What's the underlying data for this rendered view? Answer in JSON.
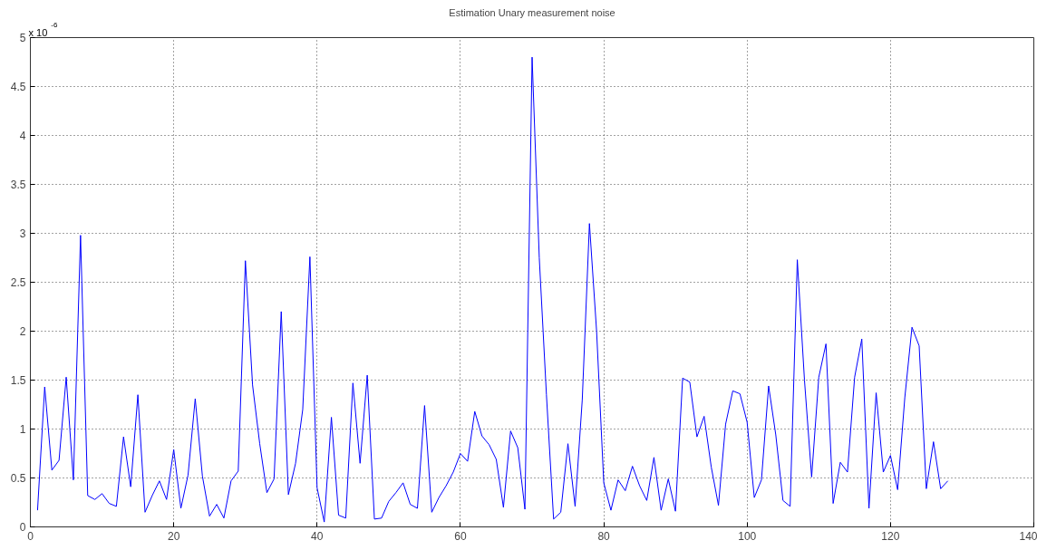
{
  "chart_data": {
    "type": "line",
    "title": "Estimation Unary measurement noise",
    "annotations": [
      "x 10$^{-6}$"
    ],
    "x": [
      1,
      2,
      3,
      4,
      5,
      6,
      7,
      8,
      9,
      10,
      11,
      12,
      13,
      14,
      15,
      16,
      17,
      18,
      19,
      20,
      21,
      22,
      23,
      24,
      25,
      26,
      27,
      28,
      29,
      30,
      31,
      32,
      33,
      34,
      35,
      36,
      37,
      38,
      39,
      40,
      41,
      42,
      43,
      44,
      45,
      46,
      47,
      48,
      49,
      50,
      51,
      52,
      53,
      54,
      55,
      56,
      57,
      58,
      59,
      60,
      61,
      62,
      63,
      64,
      65,
      66,
      67,
      68,
      69,
      70,
      71,
      72,
      73,
      74,
      75,
      76,
      77,
      78,
      79,
      80,
      81,
      82,
      83,
      84,
      85,
      86,
      87,
      88,
      89,
      90,
      91,
      92,
      93,
      94,
      95,
      96,
      97,
      98,
      99,
      100,
      101,
      102,
      103,
      104,
      105,
      106,
      107,
      108,
      109,
      110,
      111,
      112,
      113,
      114,
      115,
      116,
      117,
      118,
      119,
      120,
      121,
      122,
      123,
      124,
      125,
      126,
      127,
      128
    ],
    "series": [
      {
        "color": "#0000ff",
        "values": [
          0.17,
          1.43,
          0.58,
          0.68,
          1.53,
          0.48,
          2.98,
          0.32,
          0.28,
          0.34,
          0.24,
          0.21,
          0.92,
          0.41,
          1.35,
          0.15,
          0.32,
          0.47,
          0.28,
          0.79,
          0.19,
          0.53,
          1.31,
          0.52,
          0.11,
          0.23,
          0.09,
          0.47,
          0.57,
          2.72,
          1.45,
          0.85,
          0.35,
          0.49,
          2.2,
          0.33,
          0.65,
          1.2,
          2.76,
          0.4,
          0.05,
          1.12,
          0.12,
          0.09,
          1.47,
          0.65,
          1.55,
          0.08,
          0.09,
          0.26,
          0.35,
          0.45,
          0.23,
          0.19,
          1.24,
          0.15,
          0.3,
          0.42,
          0.56,
          0.75,
          0.67,
          1.18,
          0.93,
          0.84,
          0.69,
          0.2,
          0.98,
          0.81,
          0.18,
          4.8,
          2.75,
          1.35,
          0.08,
          0.15,
          0.85,
          0.21,
          1.3,
          3.1,
          2.0,
          0.45,
          0.17,
          0.48,
          0.37,
          0.62,
          0.42,
          0.27,
          0.71,
          0.17,
          0.49,
          0.16,
          1.52,
          1.48,
          0.92,
          1.13,
          0.61,
          0.22,
          1.05,
          1.39,
          1.36,
          1.07,
          0.3,
          0.48,
          1.44,
          0.94,
          0.27,
          0.21,
          2.73,
          1.5,
          0.51,
          1.53,
          1.87,
          0.24,
          0.66,
          0.56,
          1.53,
          1.92,
          0.19,
          1.37,
          0.56,
          0.73,
          0.38,
          1.32,
          2.04,
          1.85,
          0.39,
          0.87,
          0.39,
          0.47
        ]
      }
    ],
    "xlim": [
      0,
      140
    ],
    "xticks": [
      0,
      20,
      40,
      60,
      80,
      100,
      120,
      140
    ],
    "ylim": [
      0,
      5
    ],
    "yticks": [
      0,
      {
        "value": 0.5,
        "label": "0.5"
      },
      1,
      {
        "value": 1.5,
        "label": "1.5"
      },
      2,
      {
        "value": 2.5,
        "label": "2.5"
      },
      3,
      {
        "value": 3.5,
        "label": "3.5"
      },
      4,
      {
        "value": 4.5,
        "label": "4.5"
      },
      5
    ],
    "grid": true,
    "line_style": "solid",
    "marker": "none"
  }
}
